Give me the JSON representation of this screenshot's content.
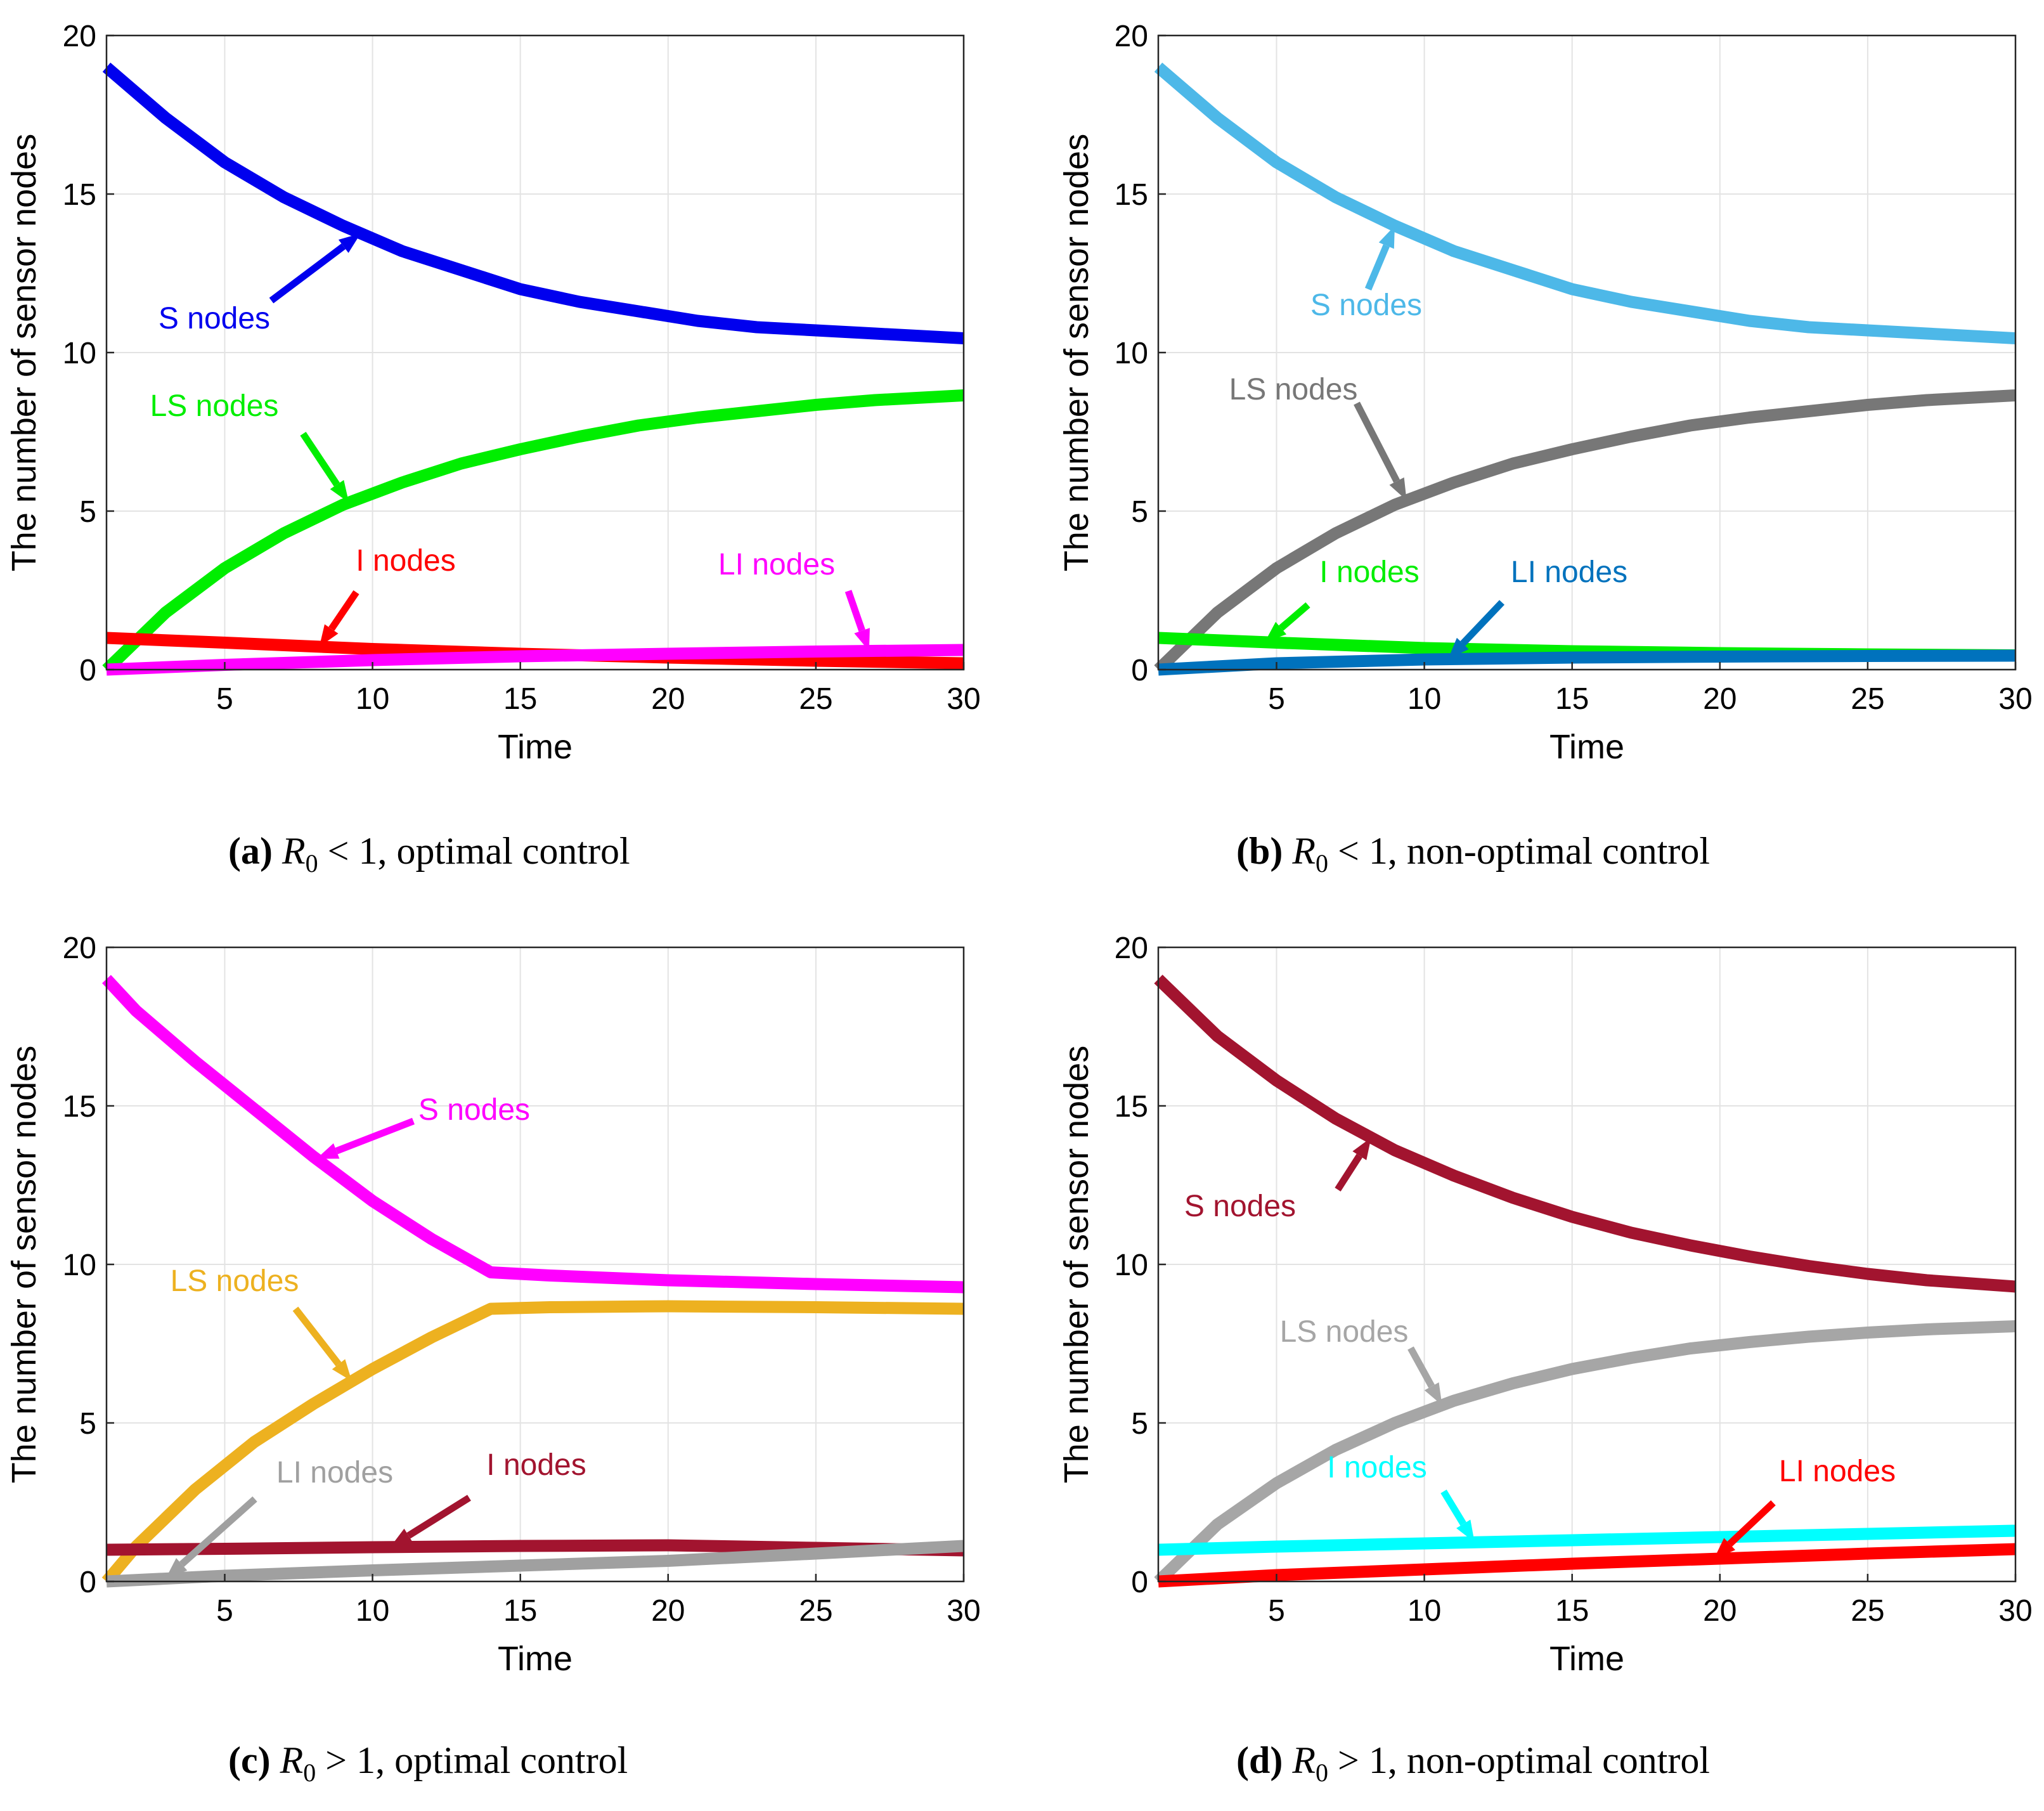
{
  "chart_data": [
    {
      "panel": "a",
      "type": "line",
      "caption": {
        "label": "(a)",
        "symbol": "R",
        "subscript": "0",
        "relation": "< 1",
        "text": ", optimal control"
      },
      "xlabel": "Time",
      "ylabel": "The number of sensor nodes",
      "xlim": [
        1,
        30
      ],
      "ylim": [
        0,
        20
      ],
      "xticks": [
        5,
        10,
        15,
        20,
        25,
        30
      ],
      "yticks": [
        0,
        5,
        10,
        15,
        20
      ],
      "grid": true,
      "series": [
        {
          "name": "S nodes",
          "color": "#0000ee",
          "x": [
            1,
            3,
            5,
            7,
            9,
            11,
            13,
            15,
            17,
            19,
            21,
            23,
            25,
            27,
            30
          ],
          "y": [
            19,
            17.4,
            16.0,
            14.9,
            14.0,
            13.2,
            12.6,
            12.0,
            11.6,
            11.3,
            11.0,
            10.8,
            10.7,
            10.6,
            10.45
          ]
        },
        {
          "name": "LS nodes",
          "color": "#00ee00",
          "x": [
            1,
            3,
            5,
            7,
            9,
            11,
            13,
            15,
            17,
            19,
            21,
            23,
            25,
            27,
            30
          ],
          "y": [
            0,
            1.8,
            3.2,
            4.3,
            5.2,
            5.9,
            6.5,
            6.95,
            7.35,
            7.7,
            7.95,
            8.15,
            8.35,
            8.5,
            8.65
          ]
        },
        {
          "name": "I nodes",
          "color": "#ff0000",
          "x": [
            1,
            5,
            10,
            15,
            20,
            25,
            30
          ],
          "y": [
            1.0,
            0.85,
            0.65,
            0.5,
            0.38,
            0.28,
            0.2
          ]
        },
        {
          "name": "LI nodes",
          "color": "#ff00ff",
          "x": [
            1,
            5,
            10,
            15,
            20,
            25,
            30
          ],
          "y": [
            0,
            0.15,
            0.3,
            0.42,
            0.5,
            0.57,
            0.62
          ]
        }
      ],
      "annotations": [
        {
          "text": "S nodes",
          "color": "#0000ee"
        },
        {
          "text": "LS nodes",
          "color": "#00ee00"
        },
        {
          "text": "I nodes",
          "color": "#ff0000"
        },
        {
          "text": "LI nodes",
          "color": "#ff00ff"
        }
      ]
    },
    {
      "panel": "b",
      "type": "line",
      "caption": {
        "label": "(b)",
        "symbol": "R",
        "subscript": "0",
        "relation": "< 1",
        "text": ", non-optimal control"
      },
      "xlabel": "Time",
      "ylabel": "The number of sensor nodes",
      "xlim": [
        1,
        30
      ],
      "ylim": [
        0,
        20
      ],
      "xticks": [
        5,
        10,
        15,
        20,
        25,
        30
      ],
      "yticks": [
        0,
        5,
        10,
        15,
        20
      ],
      "grid": true,
      "series": [
        {
          "name": "S nodes",
          "color": "#4db8e8",
          "x": [
            1,
            3,
            5,
            7,
            9,
            11,
            13,
            15,
            17,
            19,
            21,
            23,
            25,
            27,
            30
          ],
          "y": [
            19,
            17.4,
            16.0,
            14.9,
            14.0,
            13.2,
            12.6,
            12.0,
            11.6,
            11.3,
            11.0,
            10.8,
            10.7,
            10.6,
            10.45
          ]
        },
        {
          "name": "LS nodes",
          "color": "#777777",
          "x": [
            1,
            3,
            5,
            7,
            9,
            11,
            13,
            15,
            17,
            19,
            21,
            23,
            25,
            27,
            30
          ],
          "y": [
            0,
            1.8,
            3.2,
            4.3,
            5.2,
            5.9,
            6.5,
            6.95,
            7.35,
            7.7,
            7.95,
            8.15,
            8.35,
            8.5,
            8.65
          ]
        },
        {
          "name": "I nodes",
          "color": "#00ee00",
          "x": [
            1,
            5,
            10,
            15,
            20,
            25,
            30
          ],
          "y": [
            1.0,
            0.85,
            0.68,
            0.58,
            0.52,
            0.48,
            0.45
          ]
        },
        {
          "name": "LI nodes",
          "color": "#0072bd",
          "x": [
            1,
            5,
            10,
            15,
            20,
            25,
            30
          ],
          "y": [
            0,
            0.2,
            0.32,
            0.38,
            0.41,
            0.43,
            0.44
          ]
        }
      ],
      "annotations": [
        {
          "text": "S nodes",
          "color": "#4db8e8"
        },
        {
          "text": "LS nodes",
          "color": "#777777"
        },
        {
          "text": "I nodes",
          "color": "#00ee00"
        },
        {
          "text": "LI nodes",
          "color": "#0072bd"
        }
      ]
    },
    {
      "panel": "c",
      "type": "line",
      "caption": {
        "label": "(c)",
        "symbol": "R",
        "subscript": "0",
        "relation": "> 1",
        "text": ", optimal control"
      },
      "xlabel": "Time",
      "ylabel": "The number of sensor nodes",
      "xlim": [
        1,
        30
      ],
      "ylim": [
        0,
        20
      ],
      "xticks": [
        5,
        10,
        15,
        20,
        25,
        30
      ],
      "yticks": [
        0,
        5,
        10,
        15,
        20
      ],
      "grid": true,
      "series": [
        {
          "name": "S nodes",
          "color": "#ff00ff",
          "x": [
            1,
            2,
            4,
            6,
            8,
            10,
            12,
            14,
            16,
            20,
            25,
            30
          ],
          "y": [
            19,
            18.0,
            16.4,
            14.9,
            13.4,
            12.0,
            10.8,
            9.75,
            9.65,
            9.5,
            9.38,
            9.28
          ]
        },
        {
          "name": "LS nodes",
          "color": "#edb120",
          "x": [
            1,
            2,
            4,
            6,
            8,
            10,
            12,
            14,
            16,
            20,
            25,
            30
          ],
          "y": [
            0,
            1.1,
            2.9,
            4.4,
            5.6,
            6.7,
            7.7,
            8.6,
            8.65,
            8.68,
            8.65,
            8.6
          ]
        },
        {
          "name": "I nodes",
          "color": "#a2142f",
          "x": [
            1,
            5,
            10,
            15,
            20,
            25,
            30
          ],
          "y": [
            1.0,
            1.03,
            1.08,
            1.12,
            1.14,
            1.06,
            0.98
          ]
        },
        {
          "name": "LI nodes",
          "color": "#a0a0a0",
          "x": [
            1,
            5,
            10,
            15,
            20,
            25,
            30
          ],
          "y": [
            0,
            0.18,
            0.35,
            0.5,
            0.65,
            0.88,
            1.12
          ]
        }
      ],
      "annotations": [
        {
          "text": "S nodes",
          "color": "#ff00ff"
        },
        {
          "text": "LS nodes",
          "color": "#edb120"
        },
        {
          "text": "LI nodes",
          "color": "#a0a0a0"
        },
        {
          "text": "I nodes",
          "color": "#a2142f"
        }
      ]
    },
    {
      "panel": "d",
      "type": "line",
      "caption": {
        "label": "(d)",
        "symbol": "R",
        "subscript": "0",
        "relation": "> 1",
        "text": ", non-optimal control"
      },
      "xlabel": "Time",
      "ylabel": "The number of sensor nodes",
      "xlim": [
        1,
        30
      ],
      "ylim": [
        0,
        20
      ],
      "xticks": [
        5,
        10,
        15,
        20,
        25,
        30
      ],
      "yticks": [
        0,
        5,
        10,
        15,
        20
      ],
      "grid": true,
      "series": [
        {
          "name": "S nodes",
          "color": "#a2142f",
          "x": [
            1,
            3,
            5,
            7,
            9,
            11,
            13,
            15,
            17,
            19,
            21,
            23,
            25,
            27,
            30
          ],
          "y": [
            19,
            17.2,
            15.8,
            14.6,
            13.6,
            12.8,
            12.1,
            11.5,
            11.0,
            10.6,
            10.25,
            9.95,
            9.7,
            9.5,
            9.3
          ]
        },
        {
          "name": "LS nodes",
          "color": "#a6a6a6",
          "x": [
            1,
            3,
            5,
            7,
            9,
            11,
            13,
            15,
            17,
            19,
            21,
            23,
            25,
            27,
            30
          ],
          "y": [
            0,
            1.8,
            3.1,
            4.15,
            5.0,
            5.7,
            6.25,
            6.7,
            7.05,
            7.35,
            7.55,
            7.72,
            7.85,
            7.95,
            8.05
          ]
        },
        {
          "name": "I nodes",
          "color": "#00ffff",
          "x": [
            1,
            5,
            10,
            15,
            20,
            25,
            30
          ],
          "y": [
            1.0,
            1.1,
            1.2,
            1.3,
            1.4,
            1.5,
            1.6
          ]
        },
        {
          "name": "LI nodes",
          "color": "#ff0000",
          "x": [
            1,
            5,
            10,
            15,
            20,
            25,
            30
          ],
          "y": [
            0,
            0.2,
            0.38,
            0.56,
            0.72,
            0.88,
            1.02
          ]
        }
      ],
      "annotations": [
        {
          "text": "S nodes",
          "color": "#a2142f"
        },
        {
          "text": "LS nodes",
          "color": "#a6a6a6"
        },
        {
          "text": "I nodes",
          "color": "#00ffff"
        },
        {
          "text": "LI nodes",
          "color": "#ff0000"
        }
      ]
    }
  ]
}
